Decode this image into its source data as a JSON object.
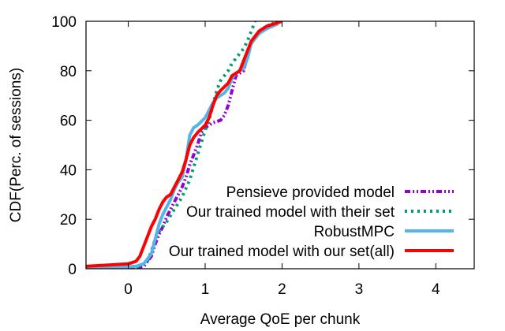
{
  "chart_data": {
    "type": "line",
    "title": "",
    "xlabel": "Average QoE per chunk",
    "ylabel": "CDF(Perc. of sessions)",
    "xlim": [
      -0.55,
      4.5
    ],
    "ylim": [
      0,
      100
    ],
    "x_ticks": [
      0,
      1,
      2,
      3,
      4
    ],
    "y_ticks": [
      0,
      20,
      40,
      60,
      80,
      100
    ],
    "grid": false,
    "legend_position": "bottom-right",
    "series": [
      {
        "name": "Pensieve provided model",
        "color": "#9400d3",
        "dash": "dash-dot-dot",
        "points": [
          [
            -0.3,
            0
          ],
          [
            0.05,
            0
          ],
          [
            0.2,
            1
          ],
          [
            0.3,
            5
          ],
          [
            0.35,
            10
          ],
          [
            0.4,
            14
          ],
          [
            0.45,
            17
          ],
          [
            0.5,
            21
          ],
          [
            0.55,
            24
          ],
          [
            0.6,
            27
          ],
          [
            0.65,
            30
          ],
          [
            0.7,
            33
          ],
          [
            0.75,
            37
          ],
          [
            0.8,
            42
          ],
          [
            0.85,
            46
          ],
          [
            0.9,
            50
          ],
          [
            0.95,
            55
          ],
          [
            1.0,
            57
          ],
          [
            1.05,
            58
          ],
          [
            1.1,
            59
          ],
          [
            1.2,
            60
          ],
          [
            1.25,
            62
          ],
          [
            1.3,
            66
          ],
          [
            1.35,
            72
          ],
          [
            1.4,
            78
          ],
          [
            1.5,
            80
          ],
          [
            1.55,
            86
          ],
          [
            1.6,
            92
          ],
          [
            1.7,
            95
          ],
          [
            1.8,
            98
          ],
          [
            1.95,
            100
          ]
        ]
      },
      {
        "name": "Our trained model with their set",
        "color": "#009e73",
        "dash": "dotted",
        "points": [
          [
            -0.3,
            0
          ],
          [
            0.1,
            0
          ],
          [
            0.25,
            3
          ],
          [
            0.3,
            7
          ],
          [
            0.35,
            12
          ],
          [
            0.4,
            15
          ],
          [
            0.5,
            19
          ],
          [
            0.6,
            24
          ],
          [
            0.7,
            29
          ],
          [
            0.8,
            36
          ],
          [
            0.85,
            41
          ],
          [
            0.9,
            46
          ],
          [
            0.95,
            51
          ],
          [
            1.0,
            56
          ],
          [
            1.05,
            60
          ],
          [
            1.1,
            66
          ],
          [
            1.15,
            72
          ],
          [
            1.2,
            76
          ],
          [
            1.3,
            80
          ],
          [
            1.35,
            83
          ],
          [
            1.45,
            87
          ],
          [
            1.5,
            89
          ],
          [
            1.55,
            92
          ],
          [
            1.6,
            96
          ],
          [
            1.65,
            100
          ]
        ]
      },
      {
        "name": "RobustMPC",
        "color": "#56b4e9",
        "dash": "solid",
        "points": [
          [
            -0.55,
            0
          ],
          [
            0.1,
            1
          ],
          [
            0.2,
            2
          ],
          [
            0.3,
            6
          ],
          [
            0.35,
            12
          ],
          [
            0.4,
            18
          ],
          [
            0.45,
            22
          ],
          [
            0.5,
            25
          ],
          [
            0.55,
            28
          ],
          [
            0.6,
            32
          ],
          [
            0.65,
            35
          ],
          [
            0.7,
            37
          ],
          [
            0.75,
            44
          ],
          [
            0.8,
            54
          ],
          [
            0.85,
            57
          ],
          [
            0.9,
            58
          ],
          [
            1.0,
            61
          ],
          [
            1.05,
            64
          ],
          [
            1.1,
            67
          ],
          [
            1.15,
            69
          ],
          [
            1.25,
            71
          ],
          [
            1.3,
            73
          ],
          [
            1.35,
            77
          ],
          [
            1.4,
            79
          ],
          [
            1.5,
            81
          ],
          [
            1.55,
            85
          ],
          [
            1.6,
            91
          ],
          [
            1.7,
            95
          ],
          [
            1.8,
            97
          ],
          [
            1.95,
            99
          ]
        ]
      },
      {
        "name": "Our trained model with our set(all)",
        "color": "#ff0000",
        "dash": "solid",
        "points": [
          [
            -0.55,
            1
          ],
          [
            0.0,
            2
          ],
          [
            0.1,
            3
          ],
          [
            0.15,
            5
          ],
          [
            0.2,
            9
          ],
          [
            0.25,
            13
          ],
          [
            0.3,
            17
          ],
          [
            0.35,
            20
          ],
          [
            0.4,
            24
          ],
          [
            0.45,
            27
          ],
          [
            0.5,
            29
          ],
          [
            0.55,
            30
          ],
          [
            0.6,
            33
          ],
          [
            0.65,
            36
          ],
          [
            0.7,
            39
          ],
          [
            0.75,
            44
          ],
          [
            0.8,
            50
          ],
          [
            0.85,
            53
          ],
          [
            0.9,
            55
          ],
          [
            1.0,
            58
          ],
          [
            1.05,
            61
          ],
          [
            1.1,
            66
          ],
          [
            1.15,
            70
          ],
          [
            1.2,
            72
          ],
          [
            1.3,
            75
          ],
          [
            1.35,
            78
          ],
          [
            1.45,
            80
          ],
          [
            1.5,
            84
          ],
          [
            1.55,
            88
          ],
          [
            1.6,
            92
          ],
          [
            1.7,
            96
          ],
          [
            1.8,
            98
          ],
          [
            2.0,
            100
          ]
        ]
      }
    ]
  }
}
